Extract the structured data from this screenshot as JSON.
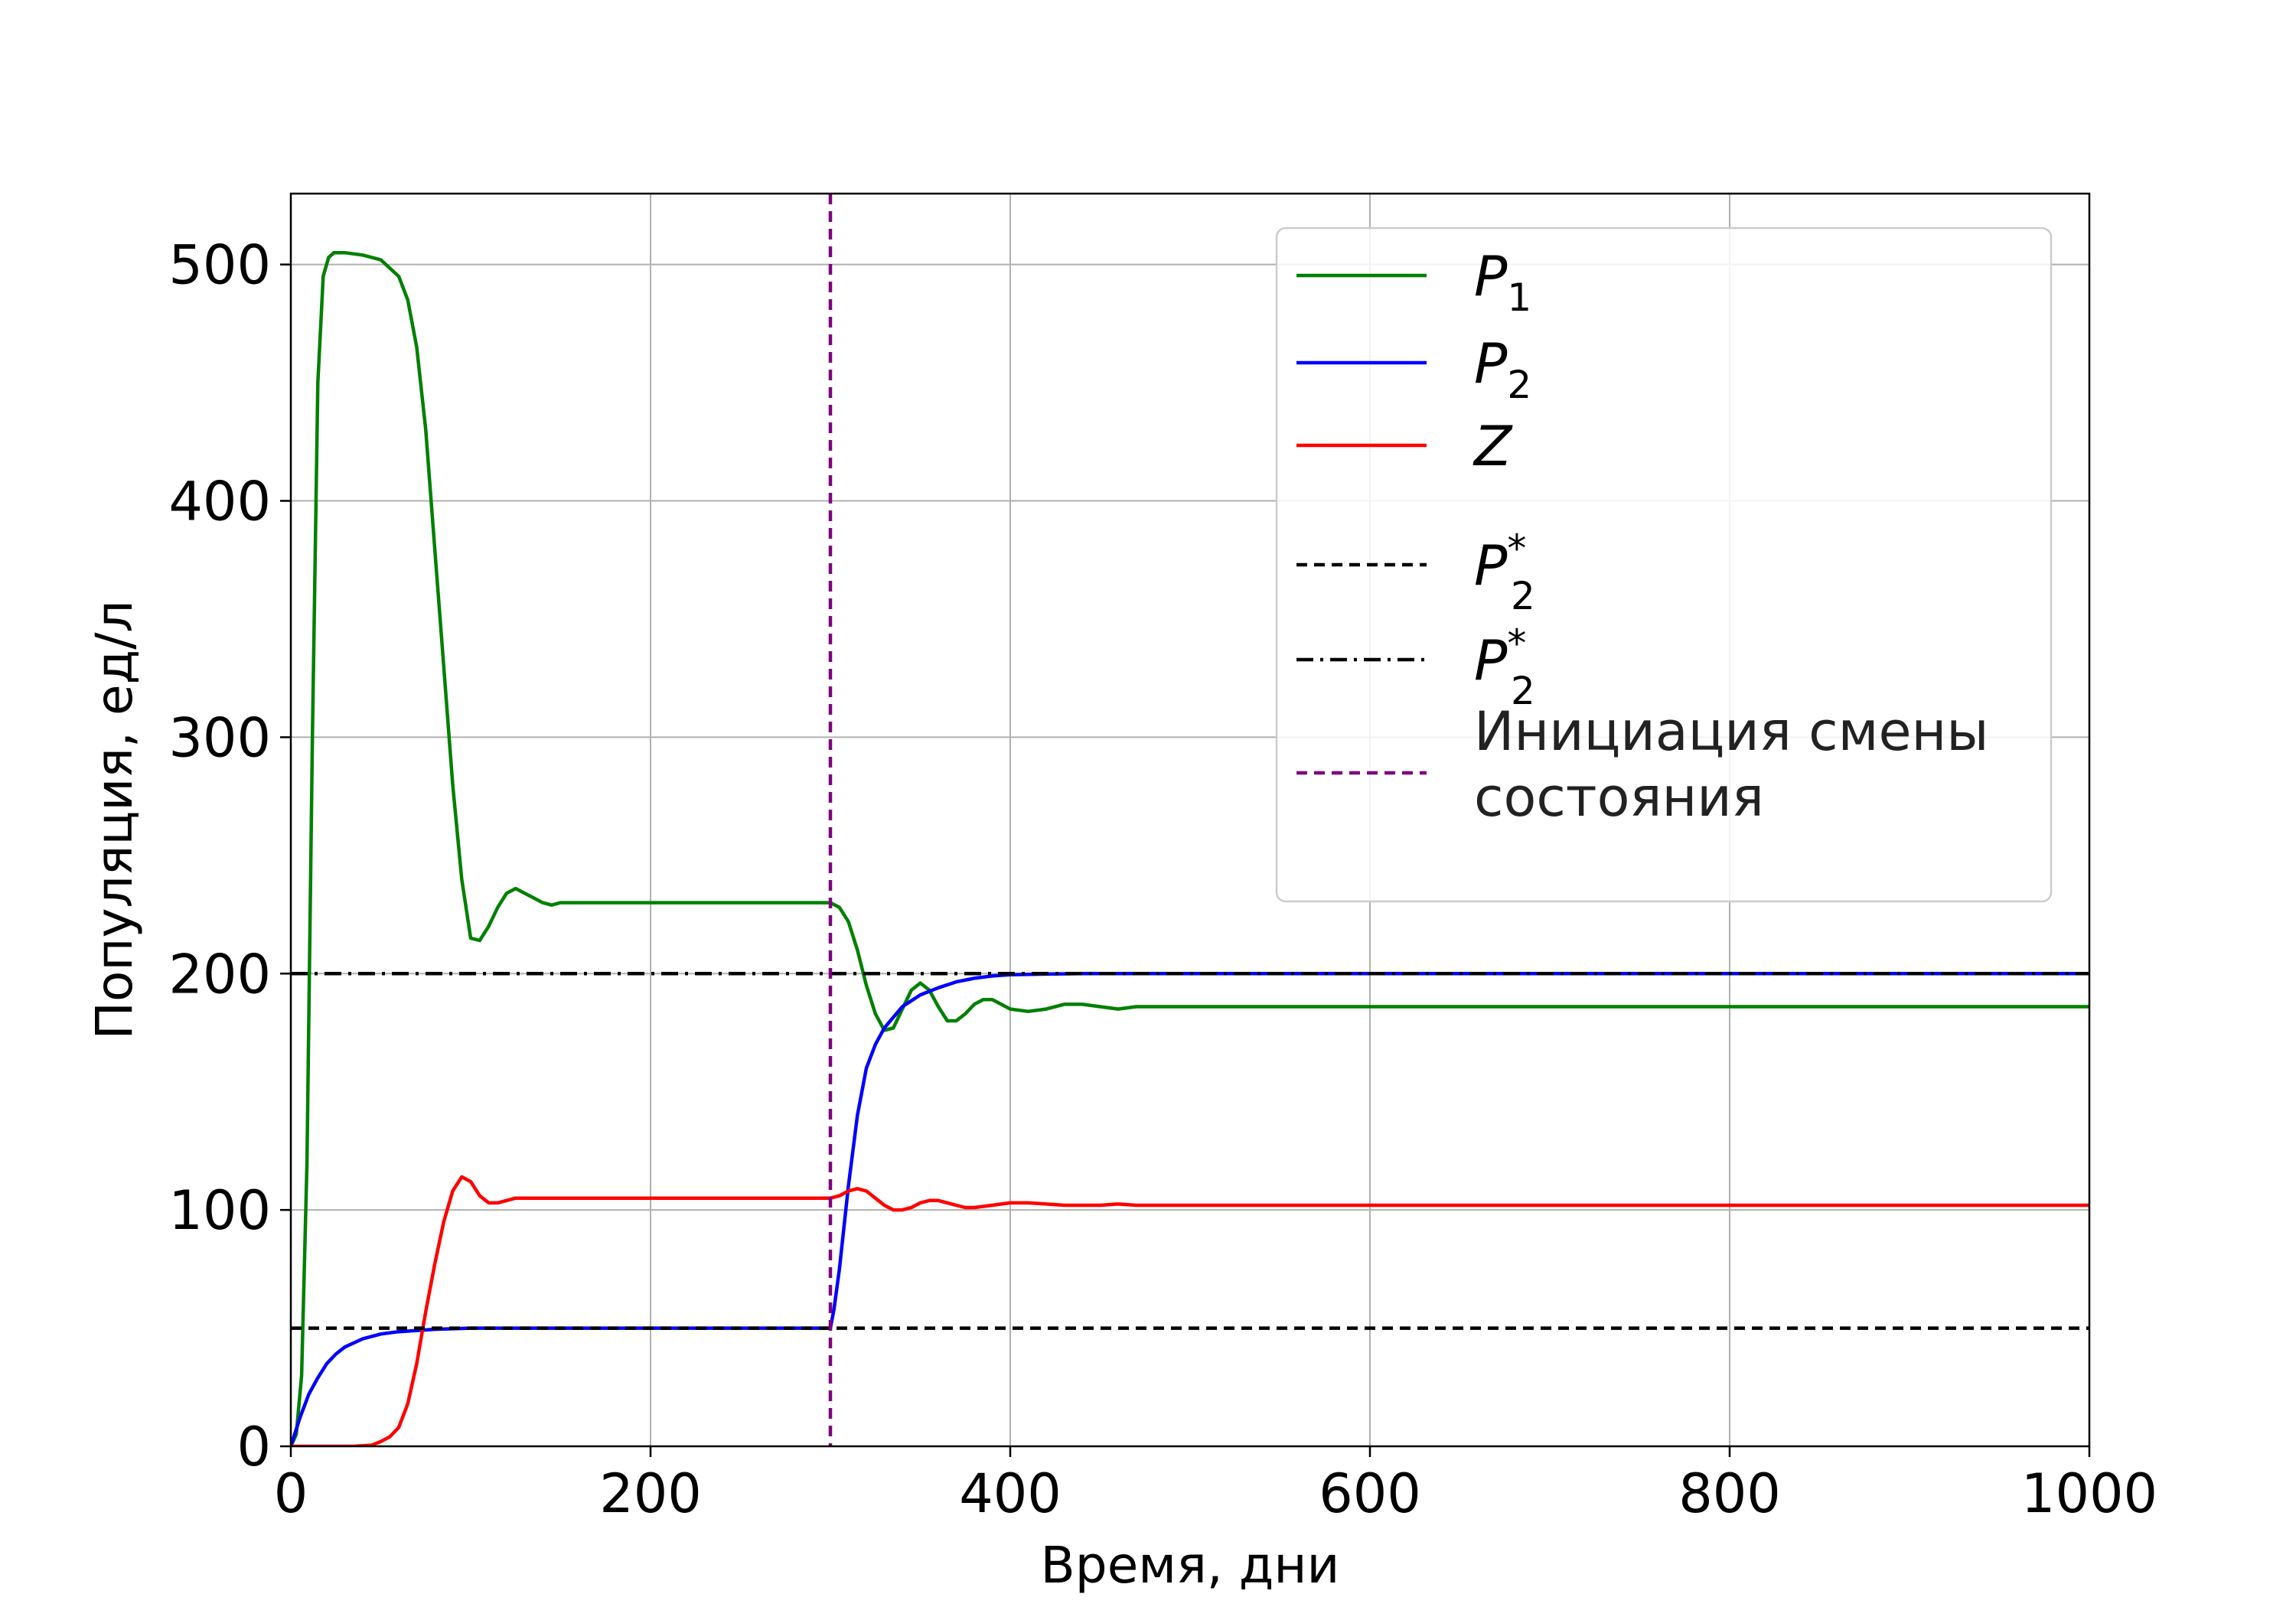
{
  "chart_data": {
    "type": "line",
    "title": "",
    "xlabel": "Время, дни",
    "ylabel": "Популяция, ед/л",
    "xlim": [
      0,
      1000
    ],
    "ylim": [
      0,
      530
    ],
    "xticks": [
      0,
      200,
      400,
      600,
      800,
      1000
    ],
    "yticks": [
      0,
      100,
      200,
      300,
      400,
      500
    ],
    "grid": true,
    "legend_position": "top-right",
    "series": [
      {
        "name": "P_1",
        "label_base": "P",
        "label_sub": "1",
        "label_sup": "",
        "color": "#008000",
        "dash": "solid",
        "x": [
          0,
          3,
          6,
          9,
          12,
          15,
          18,
          21,
          24,
          27,
          30,
          40,
          50,
          60,
          65,
          70,
          75,
          80,
          85,
          90,
          95,
          100,
          105,
          110,
          115,
          120,
          125,
          130,
          135,
          140,
          145,
          150,
          160,
          170,
          180,
          200,
          230,
          260,
          290,
          300,
          305,
          310,
          315,
          320,
          325,
          330,
          335,
          340,
          345,
          350,
          355,
          360,
          365,
          370,
          375,
          380,
          385,
          390,
          395,
          400,
          410,
          420,
          430,
          440,
          450,
          460,
          470,
          480,
          490,
          500,
          520,
          550,
          600,
          700,
          800,
          1000
        ],
        "y": [
          0,
          5,
          30,
          120,
          300,
          450,
          495,
          503,
          505,
          505,
          505,
          504,
          502,
          495,
          485,
          465,
          430,
          380,
          330,
          280,
          240,
          215,
          214,
          220,
          228,
          234,
          236,
          234,
          232,
          230,
          229,
          230,
          230,
          230,
          230,
          230,
          230,
          230,
          230,
          230,
          228,
          222,
          210,
          195,
          183,
          176,
          177,
          185,
          193,
          196,
          193,
          186,
          180,
          180,
          183,
          187,
          189,
          189,
          187,
          185,
          184,
          185,
          187,
          187,
          186,
          185,
          186,
          186,
          186,
          186,
          186,
          186,
          186,
          186,
          186,
          186
        ]
      },
      {
        "name": "P_2",
        "label_base": "P",
        "label_sub": "2",
        "label_sup": "",
        "color": "#0000ff",
        "dash": "solid",
        "x": [
          0,
          5,
          10,
          15,
          20,
          25,
          30,
          40,
          50,
          60,
          80,
          100,
          150,
          200,
          250,
          300,
          302,
          305,
          310,
          315,
          320,
          325,
          330,
          340,
          350,
          360,
          370,
          380,
          390,
          400,
          420,
          440,
          460,
          500,
          600,
          800,
          1000
        ],
        "y": [
          0,
          12,
          22,
          29,
          35,
          39,
          42,
          45.5,
          47.5,
          48.5,
          49.5,
          50,
          50,
          50,
          50,
          50,
          58,
          75,
          110,
          140,
          160,
          170,
          177,
          186,
          191,
          194,
          196.5,
          198,
          199,
          199.5,
          199.8,
          200,
          200,
          200,
          200,
          200,
          200
        ]
      },
      {
        "name": "Z",
        "label_base": "Z",
        "label_sub": "",
        "label_sup": "",
        "color": "#ff0000",
        "dash": "solid",
        "x": [
          0,
          20,
          35,
          45,
          50,
          55,
          60,
          65,
          70,
          75,
          80,
          85,
          90,
          95,
          100,
          105,
          110,
          115,
          120,
          125,
          130,
          140,
          150,
          160,
          170,
          200,
          250,
          300,
          305,
          310,
          315,
          320,
          325,
          330,
          335,
          340,
          345,
          350,
          355,
          360,
          365,
          370,
          375,
          380,
          385,
          390,
          400,
          410,
          420,
          430,
          440,
          450,
          460,
          470,
          500,
          550,
          600,
          800,
          1000
        ],
        "y": [
          0,
          0,
          0,
          0.5,
          2,
          4,
          8,
          18,
          35,
          57,
          77,
          95,
          108,
          114,
          112,
          106,
          103,
          103,
          104,
          105,
          105,
          105,
          105,
          105,
          105,
          105,
          105,
          105,
          106,
          108,
          109,
          108,
          105,
          102,
          100,
          100,
          101,
          103,
          104,
          104,
          103,
          102,
          101,
          101,
          101.5,
          102,
          103,
          103,
          102.5,
          102,
          102,
          102,
          102.5,
          102,
          102,
          102,
          102,
          102,
          102
        ]
      },
      {
        "name": "P_2*",
        "label_base": "P",
        "label_sub": "2",
        "label_sup": "*",
        "color": "#000000",
        "dash": "dashed",
        "x": [
          0,
          1000
        ],
        "y": [
          50,
          50
        ]
      },
      {
        "name": "P_2*",
        "label_base": "P",
        "label_sub": "2",
        "label_sup": "*",
        "color": "#000000",
        "dash": "dashdot",
        "x": [
          0,
          1000
        ],
        "y": [
          200,
          200
        ]
      }
    ],
    "vlines": [
      {
        "name": "Инициация смены состояния",
        "label_lines": [
          "Инициация смены",
          "состояния"
        ],
        "x": 300,
        "color": "#800080",
        "dash": "dashed"
      }
    ]
  }
}
